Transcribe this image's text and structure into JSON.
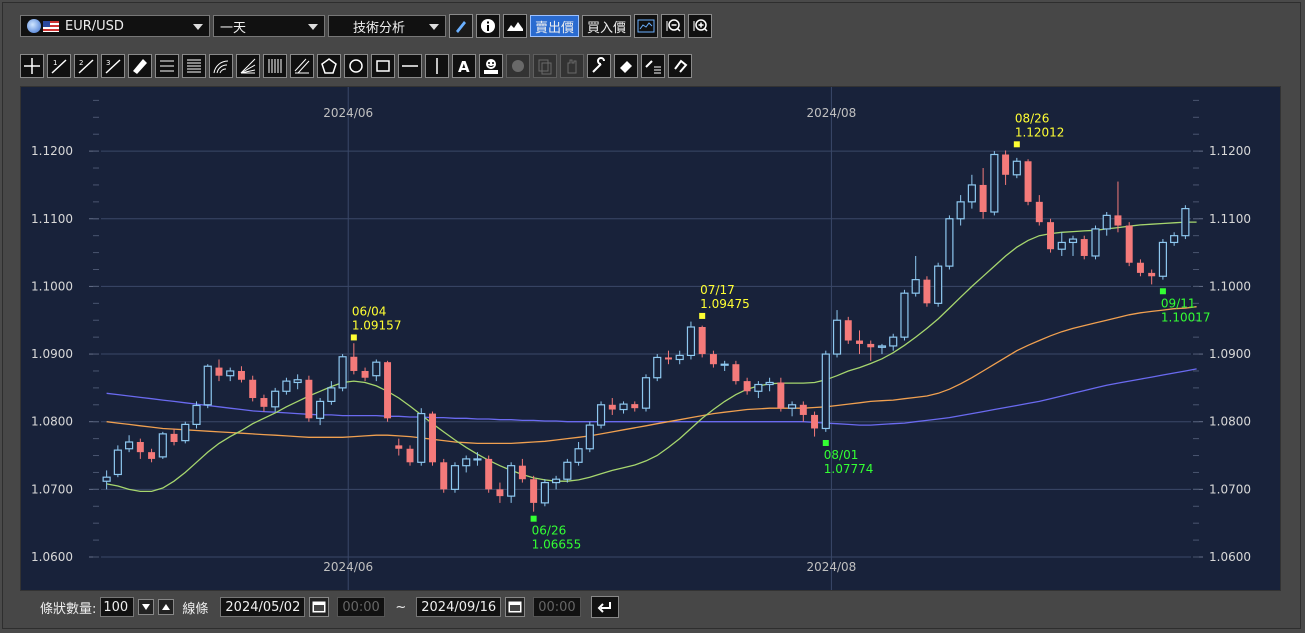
{
  "toolbar": {
    "symbol": "EUR/USD",
    "period": "一天",
    "analysis": "技術分析",
    "sell_price": "賣出價",
    "buy_price": "買入價"
  },
  "bottom": {
    "count_label": "條狀數量:",
    "count_value": "100",
    "line_label": "線條",
    "start_date": "2024/05/02",
    "start_time": "00:00",
    "tilde": "~",
    "end_date": "2024/09/16",
    "end_time": "00:00"
  },
  "chart_data": {
    "type": "candlestick",
    "ylim": [
      1.06,
      1.128
    ],
    "y_ticks": [
      "1.0600",
      "1.0700",
      "1.0800",
      "1.0900",
      "1.1000",
      "1.1100",
      "1.1200"
    ],
    "x_labels": [
      {
        "label": "2024/06",
        "index": 22
      },
      {
        "label": "2024/08",
        "index": 65
      }
    ],
    "colors": {
      "up": "#8ec8f0",
      "down": "#f47a7a",
      "ma_short": "#a6d66e",
      "ma_mid": "#f0a050",
      "ma_long": "#6a6af0",
      "annotation_high": "#ffff33",
      "annotation_low": "#33ff33"
    },
    "candles": [
      [
        1.0712,
        1.0728,
        1.07,
        1.0718
      ],
      [
        1.0722,
        1.0765,
        1.0718,
        1.0758
      ],
      [
        1.076,
        1.078,
        1.0755,
        1.077
      ],
      [
        1.077,
        1.0775,
        1.0745,
        1.0755
      ],
      [
        1.0755,
        1.076,
        1.074,
        1.0745
      ],
      [
        1.0748,
        1.0785,
        1.0745,
        1.0782
      ],
      [
        1.0782,
        1.079,
        1.0765,
        1.077
      ],
      [
        1.0772,
        1.08,
        1.0768,
        1.0796
      ],
      [
        1.0796,
        1.083,
        1.079,
        1.0824
      ],
      [
        1.0825,
        1.0885,
        1.082,
        1.0882
      ],
      [
        1.088,
        1.0892,
        1.086,
        1.0868
      ],
      [
        1.0868,
        1.088,
        1.086,
        1.0875
      ],
      [
        1.0875,
        1.0882,
        1.0858,
        1.0862
      ],
      [
        1.0862,
        1.0868,
        1.083,
        1.0835
      ],
      [
        1.0835,
        1.084,
        1.0815,
        1.0822
      ],
      [
        1.0822,
        1.085,
        1.0815,
        1.0845
      ],
      [
        1.0845,
        1.0865,
        1.084,
        1.086
      ],
      [
        1.0858,
        1.087,
        1.0848,
        1.0862
      ],
      [
        1.0862,
        1.0868,
        1.08,
        1.0805
      ],
      [
        1.0805,
        1.0835,
        1.0795,
        1.083
      ],
      [
        1.083,
        1.086,
        1.0825,
        1.085
      ],
      [
        1.085,
        1.09,
        1.0845,
        1.0896
      ],
      [
        1.0896,
        1.0916,
        1.087,
        1.0875
      ],
      [
        1.0875,
        1.088,
        1.086,
        1.0865
      ],
      [
        1.0868,
        1.0892,
        1.086,
        1.0888
      ],
      [
        1.0888,
        1.089,
        1.08,
        1.0805
      ],
      [
        1.0765,
        1.0775,
        1.075,
        1.076
      ],
      [
        1.076,
        1.0765,
        1.0735,
        1.074
      ],
      [
        1.074,
        1.082,
        1.0735,
        1.0812
      ],
      [
        1.0812,
        1.0815,
        1.0735,
        1.074
      ],
      [
        1.074,
        1.0745,
        1.0695,
        1.07
      ],
      [
        1.07,
        1.074,
        1.0695,
        1.0735
      ],
      [
        1.0735,
        1.075,
        1.0725,
        1.0745
      ],
      [
        1.0745,
        1.0755,
        1.0735,
        1.0745
      ],
      [
        1.0745,
        1.075,
        1.0695,
        1.07
      ],
      [
        1.07,
        1.071,
        1.068,
        1.069
      ],
      [
        1.069,
        1.074,
        1.068,
        1.0735
      ],
      [
        1.0735,
        1.0745,
        1.071,
        1.0715
      ],
      [
        1.0715,
        1.072,
        1.0667,
        1.068
      ],
      [
        1.068,
        1.0715,
        1.0675,
        1.071
      ],
      [
        1.071,
        1.072,
        1.07,
        1.0715
      ],
      [
        1.0715,
        1.0745,
        1.071,
        1.074
      ],
      [
        1.074,
        1.077,
        1.0735,
        1.076
      ],
      [
        1.076,
        1.08,
        1.0755,
        1.0795
      ],
      [
        1.0795,
        1.083,
        1.079,
        1.0825
      ],
      [
        1.0825,
        1.0835,
        1.081,
        1.0818
      ],
      [
        1.0818,
        1.083,
        1.0812,
        1.0826
      ],
      [
        1.0826,
        1.083,
        1.0815,
        1.082
      ],
      [
        1.082,
        1.087,
        1.0815,
        1.0865
      ],
      [
        1.0865,
        1.09,
        1.086,
        1.0895
      ],
      [
        1.0895,
        1.0905,
        1.0885,
        1.0892
      ],
      [
        1.0892,
        1.0905,
        1.0885,
        1.0898
      ],
      [
        1.0898,
        1.0948,
        1.0892,
        1.094
      ],
      [
        1.094,
        1.0942,
        1.0895,
        1.09
      ],
      [
        1.09,
        1.0905,
        1.088,
        1.0885
      ],
      [
        1.0885,
        1.089,
        1.0875,
        1.0885
      ],
      [
        1.0885,
        1.089,
        1.0855,
        1.086
      ],
      [
        1.086,
        1.0865,
        1.084,
        1.0845
      ],
      [
        1.0845,
        1.086,
        1.0835,
        1.0855
      ],
      [
        1.0855,
        1.0865,
        1.0845,
        1.0858
      ],
      [
        1.0858,
        1.0865,
        1.0815,
        1.082
      ],
      [
        1.082,
        1.083,
        1.0808,
        1.0825
      ],
      [
        1.0825,
        1.083,
        1.08,
        1.081
      ],
      [
        1.081,
        1.0815,
        1.0778,
        1.079
      ],
      [
        1.079,
        1.0905,
        1.0785,
        1.09
      ],
      [
        1.09,
        1.0965,
        1.0895,
        1.095
      ],
      [
        1.095,
        1.0955,
        1.0915,
        1.092
      ],
      [
        1.092,
        1.0935,
        1.09,
        1.0915
      ],
      [
        1.0915,
        1.092,
        1.089,
        1.091
      ],
      [
        1.091,
        1.0915,
        1.09,
        1.0912
      ],
      [
        1.0912,
        1.093,
        1.0905,
        1.0925
      ],
      [
        1.0925,
        1.0995,
        1.092,
        1.099
      ],
      [
        1.099,
        1.1045,
        1.0985,
        1.101
      ],
      [
        1.101,
        1.1015,
        1.097,
        1.0975
      ],
      [
        1.0975,
        1.1035,
        1.097,
        1.103
      ],
      [
        1.103,
        1.1105,
        1.1025,
        1.11
      ],
      [
        1.11,
        1.1135,
        1.109,
        1.1125
      ],
      [
        1.1125,
        1.1165,
        1.1115,
        1.115
      ],
      [
        1.115,
        1.1175,
        1.11,
        1.111
      ],
      [
        1.111,
        1.12,
        1.1105,
        1.1195
      ],
      [
        1.1195,
        1.1201,
        1.115,
        1.1165
      ],
      [
        1.1165,
        1.119,
        1.116,
        1.1185
      ],
      [
        1.1185,
        1.1188,
        1.112,
        1.1125
      ],
      [
        1.1125,
        1.1135,
        1.109,
        1.1095
      ],
      [
        1.1095,
        1.11,
        1.105,
        1.1055
      ],
      [
        1.1055,
        1.108,
        1.1045,
        1.1065
      ],
      [
        1.1065,
        1.1075,
        1.1045,
        1.107
      ],
      [
        1.107,
        1.1075,
        1.104,
        1.1045
      ],
      [
        1.1045,
        1.109,
        1.104,
        1.1085
      ],
      [
        1.1085,
        1.111,
        1.1075,
        1.1105
      ],
      [
        1.1105,
        1.1155,
        1.108,
        1.109
      ],
      [
        1.109,
        1.1095,
        1.103,
        1.1035
      ],
      [
        1.1035,
        1.104,
        1.1015,
        1.102
      ],
      [
        1.102,
        1.1025,
        1.1003,
        1.1015
      ],
      [
        1.1015,
        1.107,
        1.101,
        1.1065
      ],
      [
        1.1065,
        1.108,
        1.106,
        1.1075
      ],
      [
        1.1075,
        1.112,
        1.107,
        1.1115
      ]
    ],
    "ma_short": [
      1.0708,
      1.0705,
      1.07,
      1.0697,
      1.0697,
      1.0702,
      1.0712,
      1.0725,
      1.074,
      1.0755,
      1.0768,
      1.0778,
      1.0787,
      1.0797,
      1.0805,
      1.0813,
      1.0822,
      1.083,
      1.0838,
      1.0845,
      1.0852,
      1.0858,
      1.086,
      1.0858,
      1.0853,
      1.0845,
      1.0835,
      1.0823,
      1.081,
      1.0797,
      1.0785,
      1.0773,
      1.0762,
      1.0752,
      1.0743,
      1.0735,
      1.0728,
      1.0722,
      1.0717,
      1.0714,
      1.0712,
      1.0712,
      1.0714,
      1.0718,
      1.0723,
      1.0728,
      1.0732,
      1.0736,
      1.0742,
      1.075,
      1.0762,
      1.0775,
      1.079,
      1.0805,
      1.0818,
      1.083,
      1.084,
      1.0848,
      1.0853,
      1.0856,
      1.0857,
      1.0857,
      1.0857,
      1.0858,
      1.0862,
      1.0868,
      1.0875,
      1.088,
      1.0886,
      1.0893,
      1.0902,
      1.0913,
      1.0925,
      1.0938,
      1.0952,
      1.0968,
      1.0984,
      1.1,
      1.1015,
      1.103,
      1.1045,
      1.1058,
      1.1068,
      1.1075,
      1.1078,
      1.108,
      1.1081,
      1.1082,
      1.1083,
      1.1085,
      1.1087,
      1.1089,
      1.1091,
      1.1092,
      1.1093,
      1.1094,
      1.1095,
      1.1095
    ],
    "ma_mid": [
      1.08,
      1.0798,
      1.0796,
      1.0794,
      1.0792,
      1.079,
      1.0789,
      1.0788,
      1.0787,
      1.0786,
      1.0785,
      1.0784,
      1.0783,
      1.0782,
      1.0781,
      1.078,
      1.0779,
      1.0778,
      1.0777,
      1.0777,
      1.0777,
      1.0777,
      1.0778,
      1.0779,
      1.078,
      1.078,
      1.0779,
      1.0778,
      1.0776,
      1.0774,
      1.0772,
      1.077,
      1.0769,
      1.0768,
      1.0768,
      1.0768,
      1.0768,
      1.0769,
      1.077,
      1.0771,
      1.0773,
      1.0775,
      1.0777,
      1.0779,
      1.0782,
      1.0785,
      1.0788,
      1.0791,
      1.0794,
      1.0797,
      1.08,
      1.0803,
      1.0806,
      1.0809,
      1.0812,
      1.0814,
      1.0816,
      1.0818,
      1.0819,
      1.082,
      1.082,
      1.082,
      1.082,
      1.0821,
      1.0822,
      1.0824,
      1.0826,
      1.0828,
      1.083,
      1.0831,
      1.0832,
      1.0834,
      1.0836,
      1.0838,
      1.0842,
      1.0848,
      1.0856,
      1.0865,
      1.0875,
      1.0885,
      1.0895,
      1.0905,
      1.0913,
      1.092,
      1.0927,
      1.0933,
      1.0938,
      1.0942,
      1.0946,
      1.095,
      1.0954,
      1.0958,
      1.0961,
      1.0963,
      1.0965,
      1.0967,
      1.0968,
      1.097
    ],
    "ma_long": [
      1.0842,
      1.084,
      1.0838,
      1.0836,
      1.0834,
      1.0832,
      1.083,
      1.0828,
      1.0826,
      1.0824,
      1.0822,
      1.082,
      1.0818,
      1.0816,
      1.0815,
      1.0814,
      1.0813,
      1.0812,
      1.0811,
      1.081,
      1.081,
      1.0809,
      1.0809,
      1.0809,
      1.0809,
      1.0808,
      1.0808,
      1.0807,
      1.0807,
      1.0806,
      1.0806,
      1.0805,
      1.0805,
      1.0804,
      1.0804,
      1.0803,
      1.0803,
      1.0802,
      1.0802,
      1.0801,
      1.0801,
      1.08,
      1.08,
      1.08,
      1.08,
      1.08,
      1.08,
      1.08,
      1.08,
      1.08,
      1.08,
      1.08,
      1.08,
      1.08,
      1.08,
      1.08,
      1.08,
      1.08,
      1.08,
      1.08,
      1.08,
      1.08,
      1.08,
      1.0799,
      1.0798,
      1.0797,
      1.0796,
      1.0795,
      1.0795,
      1.0796,
      1.0797,
      1.0798,
      1.08,
      1.0802,
      1.0804,
      1.0806,
      1.0809,
      1.0812,
      1.0815,
      1.0818,
      1.0821,
      1.0824,
      1.0827,
      1.083,
      1.0834,
      1.0838,
      1.0842,
      1.0846,
      1.085,
      1.0854,
      1.0857,
      1.086,
      1.0863,
      1.0866,
      1.0869,
      1.0872,
      1.0875,
      1.0878
    ],
    "annotations": [
      {
        "index": 22,
        "type": "high",
        "date": "06/04",
        "value": "1.09157",
        "price": 1.09157
      },
      {
        "index": 38,
        "type": "low",
        "date": "06/26",
        "value": "1.06655",
        "price": 1.06655
      },
      {
        "index": 53,
        "type": "high",
        "date": "07/17",
        "value": "1.09475",
        "price": 1.09475
      },
      {
        "index": 64,
        "type": "low",
        "date": "08/01",
        "value": "1.07774",
        "price": 1.07774
      },
      {
        "index": 81,
        "type": "high",
        "date": "08/26",
        "value": "1.12012",
        "price": 1.12012
      },
      {
        "index": 94,
        "type": "low",
        "date": "09/11",
        "value": "1.10017",
        "price": 1.10017
      }
    ]
  }
}
